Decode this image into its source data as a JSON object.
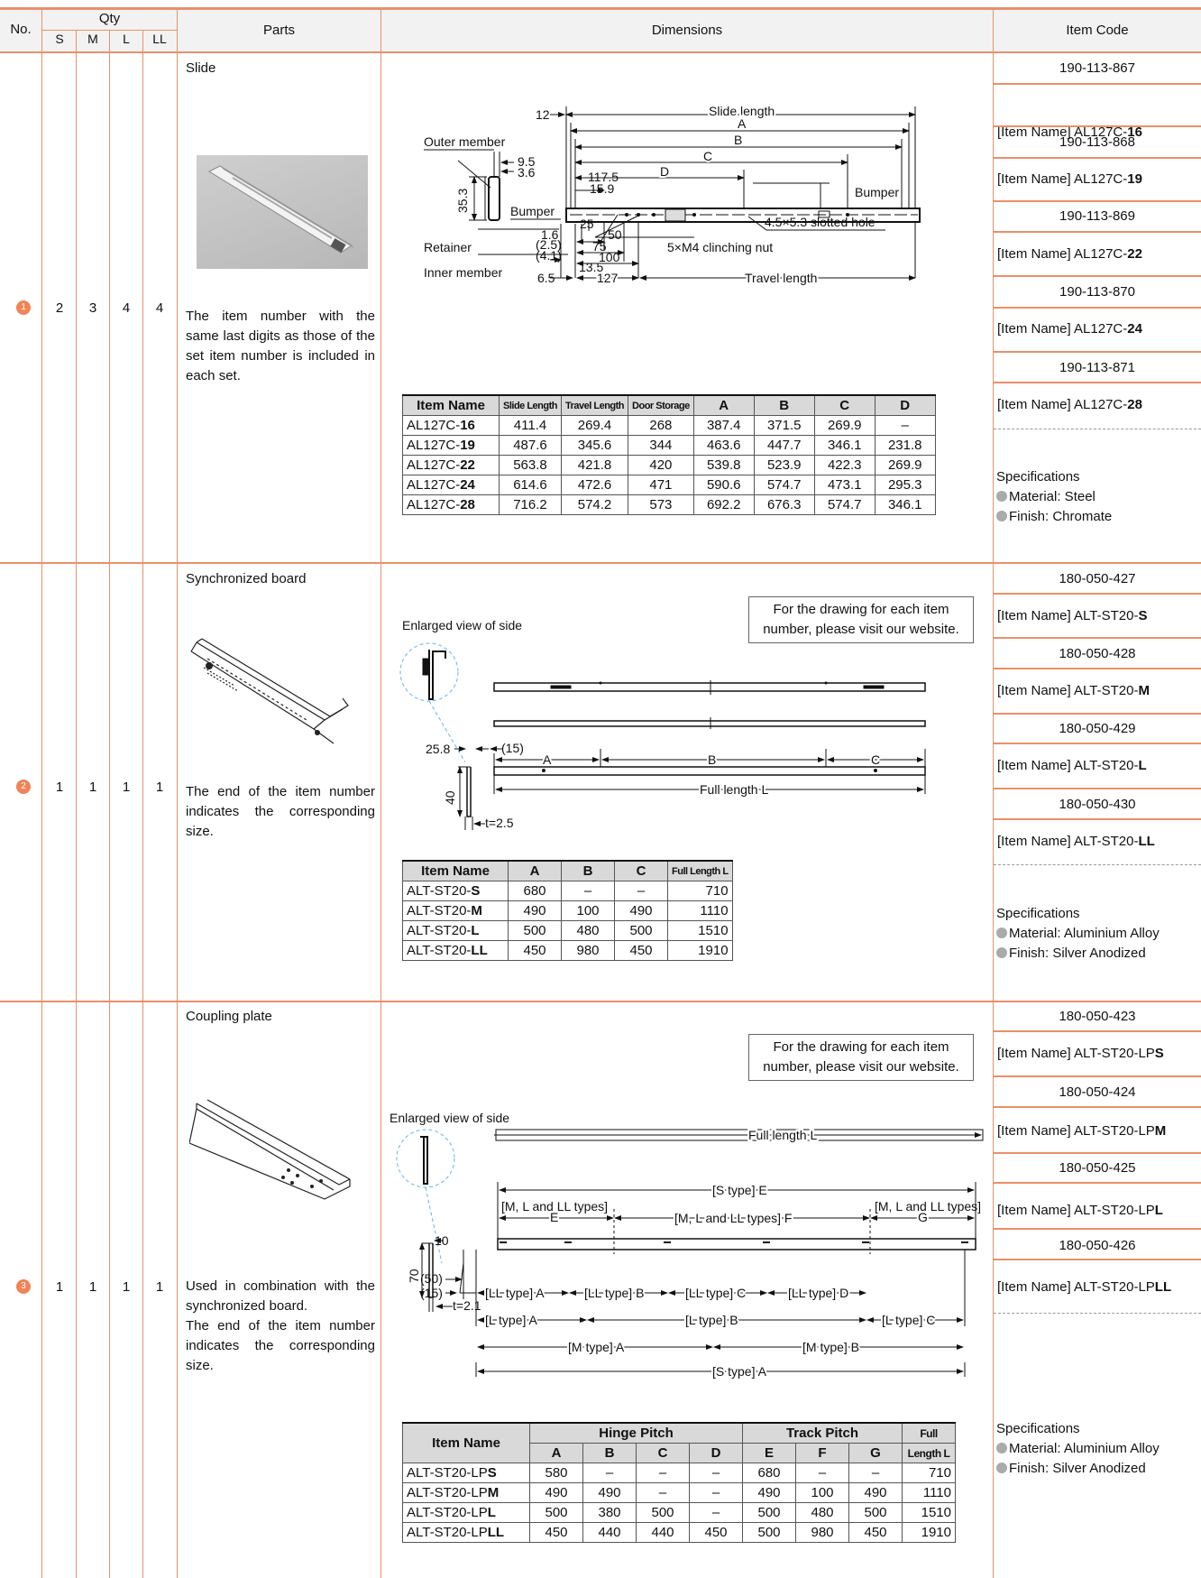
{
  "header": {
    "no": "No.",
    "qty": "Qty",
    "sizes": [
      "S",
      "M",
      "L",
      "LL"
    ],
    "parts": "Parts",
    "dimensions": "Dimensions",
    "item_code": "Item Code"
  },
  "item_name_prefix": "[Item Name]",
  "rows": [
    {
      "no": "1",
      "qty": [
        "2",
        "3",
        "4",
        "4"
      ],
      "part_name": "Slide",
      "description": "The item number with the same last digits as those of the set item number is included in each set.",
      "codes": [
        {
          "code": "190-113-867",
          "name_base": "AL127C-",
          "name_bold": "16"
        },
        {
          "code": "190-113-868",
          "name_base": "AL127C-",
          "name_bold": "19"
        },
        {
          "code": "190-113-869",
          "name_base": "AL127C-",
          "name_bold": "22"
        },
        {
          "code": "190-113-870",
          "name_base": "AL127C-",
          "name_bold": "24"
        },
        {
          "code": "190-113-871",
          "name_base": "AL127C-",
          "name_bold": "28"
        }
      ],
      "spec_title": "Specifications",
      "specs": [
        "Material: Steel",
        "Finish: Chromate"
      ],
      "drawing_labels": {
        "slide_length": "Slide length",
        "a": "A",
        "b": "B",
        "c": "C",
        "d": "D",
        "v12": "12",
        "outer_member": "Outer member",
        "v95": "9.5",
        "v36": "3.6",
        "v1175": "117.5",
        "v159": "15.9",
        "bumper": "Bumper",
        "v353": "35.3",
        "slotted": "4.5×5.3 slotted hole",
        "v25": "25",
        "v16": "1.6",
        "v25p": "(2.5)",
        "v50": "50",
        "v75": "75",
        "v100": "100",
        "v41": "(4.1)",
        "v135": "13.5",
        "v65": "6.5",
        "v127": "127",
        "retainer": "Retainer",
        "clinch": "5×M4 clinching nut",
        "inner_member": "Inner member",
        "travel_length": "Travel length"
      },
      "table": {
        "headers": [
          "Item Name",
          "Slide Length",
          "Travel Length",
          "Door Storage",
          "A",
          "B",
          "C",
          "D"
        ],
        "rows": [
          {
            "base": "AL127C-",
            "bold": "16",
            "vals": [
              "411.4",
              "269.4",
              "268",
              "387.4",
              "371.5",
              "269.9",
              "–"
            ]
          },
          {
            "base": "AL127C-",
            "bold": "19",
            "vals": [
              "487.6",
              "345.6",
              "344",
              "463.6",
              "447.7",
              "346.1",
              "231.8"
            ]
          },
          {
            "base": "AL127C-",
            "bold": "22",
            "vals": [
              "563.8",
              "421.8",
              "420",
              "539.8",
              "523.9",
              "422.3",
              "269.9"
            ]
          },
          {
            "base": "AL127C-",
            "bold": "24",
            "vals": [
              "614.6",
              "472.6",
              "471",
              "590.6",
              "574.7",
              "473.1",
              "295.3"
            ]
          },
          {
            "base": "AL127C-",
            "bold": "28",
            "vals": [
              "716.2",
              "574.2",
              "573",
              "692.2",
              "676.3",
              "574.7",
              "346.1"
            ]
          }
        ]
      }
    },
    {
      "no": "2",
      "qty": [
        "1",
        "1",
        "1",
        "1"
      ],
      "part_name": "Synchronized board",
      "description": "The end of the item number indicates the corresponding size.",
      "codes": [
        {
          "code": "180-050-427",
          "name_base": "ALT-ST20-",
          "name_bold": "S"
        },
        {
          "code": "180-050-428",
          "name_base": "ALT-ST20-",
          "name_bold": "M"
        },
        {
          "code": "180-050-429",
          "name_base": "ALT-ST20-",
          "name_bold": "L"
        },
        {
          "code": "180-050-430",
          "name_base": "ALT-ST20-",
          "name_bold": "LL"
        }
      ],
      "spec_title": "Specifications",
      "specs": [
        "Material: Aluminium Alloy",
        "Finish: Silver Anodized"
      ],
      "note_line1": "For the drawing for each item",
      "note_line2": "number, please visit our website.",
      "drawing_labels": {
        "enlarged": "Enlarged view of side",
        "v258": "25.8",
        "v15": "(15)",
        "a": "A",
        "b": "B",
        "c": "C",
        "v40": "40",
        "t25": "t=2.5",
        "full_length": "Full length L"
      },
      "table": {
        "headers": [
          "Item Name",
          "A",
          "B",
          "C",
          "Full Length L"
        ],
        "rows": [
          {
            "base": "ALT-ST20-",
            "bold": "S",
            "vals": [
              "680",
              "–",
              "–",
              "710"
            ]
          },
          {
            "base": "ALT-ST20-",
            "bold": "M",
            "vals": [
              "490",
              "100",
              "490",
              "1110"
            ]
          },
          {
            "base": "ALT-ST20-",
            "bold": "L",
            "vals": [
              "500",
              "480",
              "500",
              "1510"
            ]
          },
          {
            "base": "ALT-ST20-",
            "bold": "LL",
            "vals": [
              "450",
              "980",
              "450",
              "1910"
            ]
          }
        ]
      }
    },
    {
      "no": "3",
      "qty": [
        "1",
        "1",
        "1",
        "1"
      ],
      "part_name": "Coupling plate",
      "description": "Used in combination with the synchronized board. The end of the item number indicates the corresponding size.",
      "desc_line1": "Used in combination with the synchronized board.",
      "desc_line2": "The end of the item number indicates the corresponding size.",
      "codes": [
        {
          "code": "180-050-423",
          "name_base": "ALT-ST20-LP",
          "name_bold": "S"
        },
        {
          "code": "180-050-424",
          "name_base": "ALT-ST20-LP",
          "name_bold": "M"
        },
        {
          "code": "180-050-425",
          "name_base": "ALT-ST20-LP",
          "name_bold": "L"
        },
        {
          "code": "180-050-426",
          "name_base": "ALT-ST20-LP",
          "name_bold": "LL"
        }
      ],
      "spec_title": "Specifications",
      "specs": [
        "Material: Aluminium Alloy",
        "Finish: Silver Anodized"
      ],
      "note_line1": "For the drawing for each item",
      "note_line2": "number, please visit our website.",
      "drawing_labels": {
        "enlarged": "Enlarged view of side",
        "full_length": "Full length L",
        "v10": "10",
        "s_e": "[S type] E",
        "mll1": "[M, L and LL types]",
        "e": "E",
        "mll_f": "[M, L and LL types] F",
        "mll2": "[M, L and LL types]",
        "g": "G",
        "v70": "70",
        "v50": "(50)",
        "v15": "(15)",
        "t21": "t=2.1",
        "ll_a": "[LL type] A",
        "ll_b": "[LL type] B",
        "ll_c": "[LL type] C",
        "ll_d": "[LL type] D",
        "l_a": "[L type] A",
        "l_b": "[L type] B",
        "l_c": "[L type] C",
        "m_a": "[M type] A",
        "m_b": "[M type] B",
        "s_a": "[S type] A"
      },
      "table": {
        "item_name": "Item Name",
        "hinge_pitch": "Hinge Pitch",
        "track_pitch": "Track Pitch",
        "full_1": "Full",
        "full_2": "Length L",
        "sub": [
          "A",
          "B",
          "C",
          "D",
          "E",
          "F",
          "G"
        ],
        "rows": [
          {
            "base": "ALT-ST20-LP",
            "bold": "S",
            "vals": [
              "580",
              "–",
              "–",
              "–",
              "680",
              "–",
              "–",
              "710"
            ]
          },
          {
            "base": "ALT-ST20-LP",
            "bold": "M",
            "vals": [
              "490",
              "490",
              "–",
              "–",
              "490",
              "100",
              "490",
              "1110"
            ]
          },
          {
            "base": "ALT-ST20-LP",
            "bold": "L",
            "vals": [
              "500",
              "380",
              "500",
              "–",
              "500",
              "480",
              "500",
              "1510"
            ]
          },
          {
            "base": "ALT-ST20-LP",
            "bold": "LL",
            "vals": [
              "450",
              "440",
              "440",
              "450",
              "500",
              "980",
              "450",
              "1910"
            ]
          }
        ]
      }
    }
  ]
}
